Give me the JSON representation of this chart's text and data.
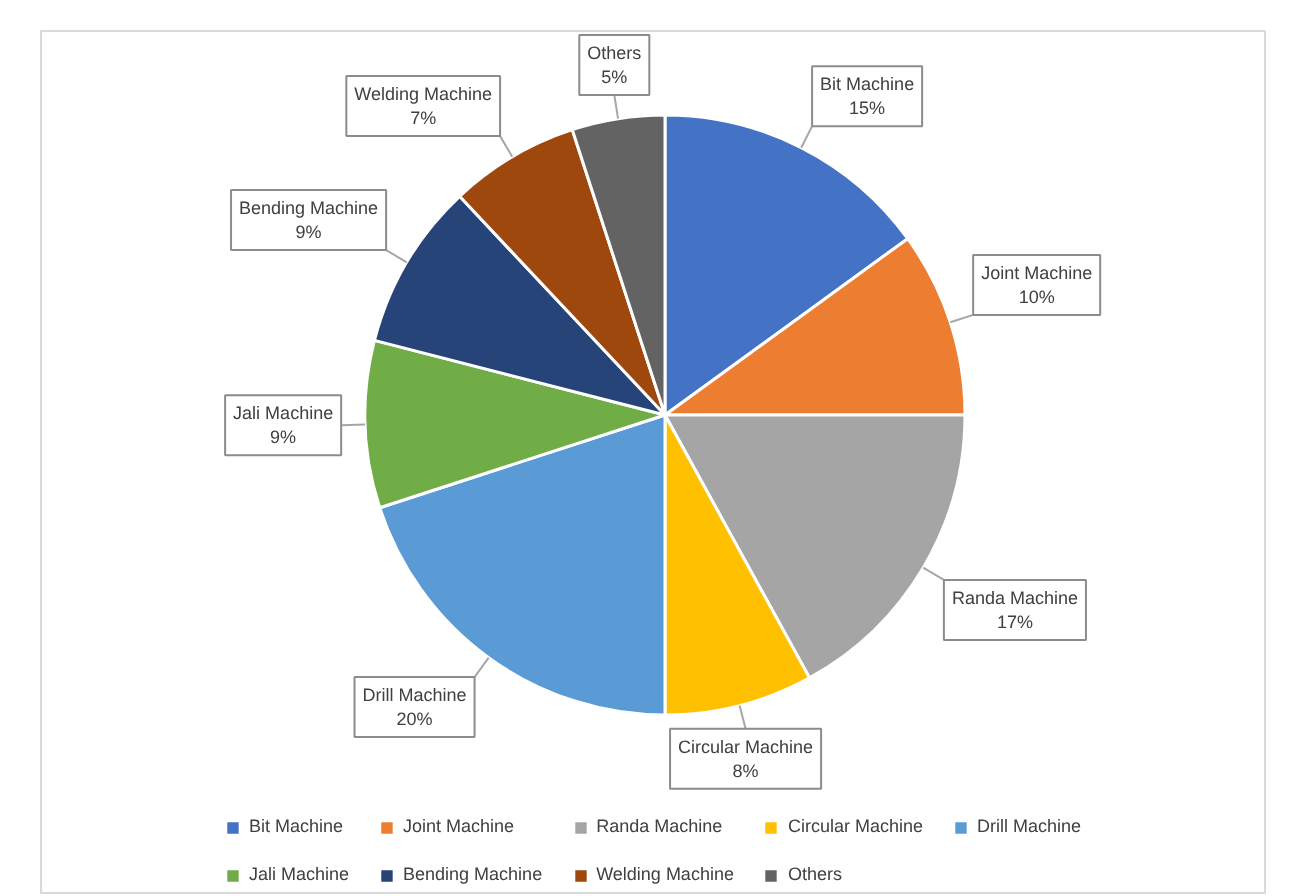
{
  "chart_data": {
    "type": "pie",
    "categories": [
      "Bit Machine",
      "Joint Machine",
      "Randa Machine",
      "Circular Machine",
      "Drill Machine",
      "Jali Machine",
      "Bending Machine",
      "Welding Machine",
      "Others"
    ],
    "values": [
      15,
      10,
      17,
      8,
      20,
      9,
      9,
      7,
      5
    ],
    "value_labels": [
      "15%",
      "10%",
      "17%",
      "8%",
      "20%",
      "9%",
      "9%",
      "7%",
      "5%"
    ],
    "colors": [
      "#4472c4",
      "#ed7d31",
      "#a5a5a5",
      "#ffc000",
      "#5b9bd5",
      "#70ad47",
      "#264478",
      "#9e480e",
      "#636363"
    ],
    "legend": "bottom"
  }
}
